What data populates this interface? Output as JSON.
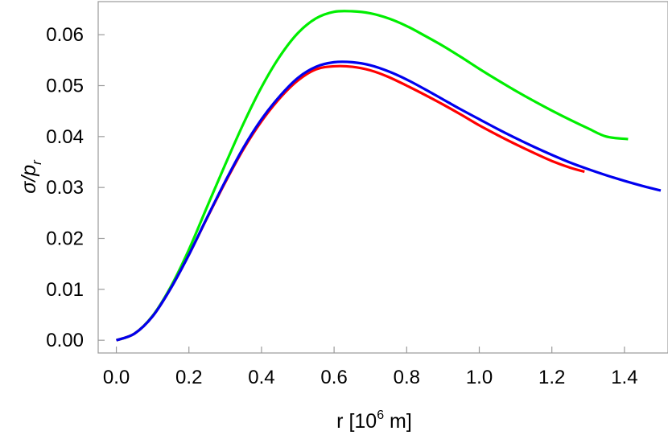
{
  "chart_data": {
    "type": "line",
    "xlabel_main": "r [10",
    "xlabel_sup": "6",
    "xlabel_tail": " m]",
    "ylabel_sigma": "σ/p",
    "ylabel_sub": "r",
    "xlim": [
      -0.05,
      1.52
    ],
    "ylim": [
      -0.0025,
      0.0665
    ],
    "x_ticks": [
      0.0,
      0.2,
      0.4,
      0.6,
      0.8,
      1.0,
      1.2,
      1.4
    ],
    "x_tick_labels": [
      "0.0",
      "0.2",
      "0.4",
      "0.6",
      "0.8",
      "1.0",
      "1.2",
      "1.4"
    ],
    "y_ticks": [
      0.0,
      0.01,
      0.02,
      0.03,
      0.04,
      0.05,
      0.06
    ],
    "y_tick_labels": [
      "0.00",
      "0.01",
      "0.02",
      "0.03",
      "0.04",
      "0.05",
      "0.06"
    ],
    "grid": false,
    "series": [
      {
        "color": "#00ee00",
        "x": [
          0.0,
          0.05,
          0.1,
          0.15,
          0.2,
          0.25,
          0.3,
          0.35,
          0.4,
          0.45,
          0.5,
          0.55,
          0.6,
          0.65,
          0.7,
          0.75,
          0.8,
          0.85,
          0.9,
          0.95,
          1.0,
          1.05,
          1.1,
          1.15,
          1.2,
          1.25,
          1.3,
          1.35,
          1.41
        ],
        "y": [
          0.0,
          0.0013,
          0.0048,
          0.0105,
          0.0178,
          0.0262,
          0.0345,
          0.0425,
          0.0497,
          0.0557,
          0.0603,
          0.0632,
          0.0645,
          0.0646,
          0.0642,
          0.0632,
          0.0617,
          0.0598,
          0.0578,
          0.0556,
          0.0533,
          0.0511,
          0.049,
          0.047,
          0.0451,
          0.0433,
          0.0416,
          0.04,
          0.0395
        ]
      },
      {
        "color": "#ff0000",
        "x": [
          0.0,
          0.05,
          0.1,
          0.15,
          0.2,
          0.25,
          0.3,
          0.35,
          0.4,
          0.45,
          0.5,
          0.55,
          0.6,
          0.65,
          0.7,
          0.75,
          0.8,
          0.85,
          0.9,
          0.95,
          1.0,
          1.05,
          1.1,
          1.15,
          1.2,
          1.25,
          1.29
        ],
        "y": [
          0.0,
          0.0013,
          0.0047,
          0.0102,
          0.0168,
          0.024,
          0.031,
          0.0375,
          0.043,
          0.0475,
          0.051,
          0.0532,
          0.0538,
          0.0537,
          0.053,
          0.0517,
          0.05,
          0.0482,
          0.0463,
          0.0443,
          0.0422,
          0.0403,
          0.0385,
          0.0368,
          0.0352,
          0.0339,
          0.0331
        ]
      },
      {
        "color": "#0000ee",
        "x": [
          0.0,
          0.05,
          0.1,
          0.15,
          0.2,
          0.25,
          0.3,
          0.35,
          0.4,
          0.45,
          0.5,
          0.55,
          0.6,
          0.65,
          0.7,
          0.75,
          0.8,
          0.85,
          0.9,
          0.95,
          1.0,
          1.05,
          1.1,
          1.15,
          1.2,
          1.25,
          1.3,
          1.35,
          1.4,
          1.45,
          1.5
        ],
        "y": [
          0.0,
          0.0013,
          0.0047,
          0.0102,
          0.0168,
          0.0241,
          0.0312,
          0.0378,
          0.0434,
          0.0479,
          0.0515,
          0.0537,
          0.0546,
          0.0546,
          0.054,
          0.0528,
          0.0512,
          0.0493,
          0.0473,
          0.0453,
          0.0434,
          0.0415,
          0.0397,
          0.038,
          0.0364,
          0.0349,
          0.0336,
          0.0324,
          0.0313,
          0.0303,
          0.0294
        ]
      }
    ]
  }
}
